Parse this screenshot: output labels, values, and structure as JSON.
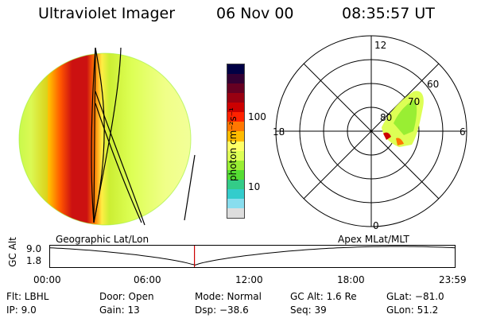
{
  "header": {
    "instrument": "Ultraviolet Imager",
    "date": "06 Nov 00",
    "time": "08:35:57 UT"
  },
  "left_panel": {
    "label": "Geographic Lat/Lon"
  },
  "right_panel": {
    "label": "Apex MLat/MLT",
    "mlt_labels": {
      "top": "12",
      "left": "18",
      "right": "6",
      "bottom": "0"
    },
    "lat_labels": [
      "60",
      "70",
      "80"
    ]
  },
  "colorbar": {
    "unit_label": "photon cm⁻²s⁻¹",
    "ticks": [
      "100",
      "10"
    ],
    "colors": [
      "#000044",
      "#330033",
      "#660022",
      "#990011",
      "#cc0000",
      "#ff2200",
      "#ff7700",
      "#ffbb00",
      "#ffff66",
      "#ddff55",
      "#99ee33",
      "#55dd33",
      "#33cc88",
      "#33cccc",
      "#88ddee",
      "#dddddd"
    ]
  },
  "timeline": {
    "ylabel": "GC Alt",
    "y_top": "9.0",
    "y_bottom": "1.8",
    "ticks": [
      "00:00",
      "06:00",
      "12:00",
      "18:00",
      "23:59"
    ],
    "current_time": "08:35:57",
    "current_fraction": 0.358
  },
  "info": {
    "col1": [
      "Flt: LBHL",
      "IP:  9.0"
    ],
    "col2": [
      "Door: Open",
      "Gain: 13"
    ],
    "col3": [
      "Mode: Normal",
      "Dsp:  −38.6"
    ],
    "col4": [
      "GC Alt: 1.6 Re",
      "Seq: 39"
    ],
    "col5": [
      "GLat: −81.0",
      "GLon:  51.2"
    ]
  }
}
